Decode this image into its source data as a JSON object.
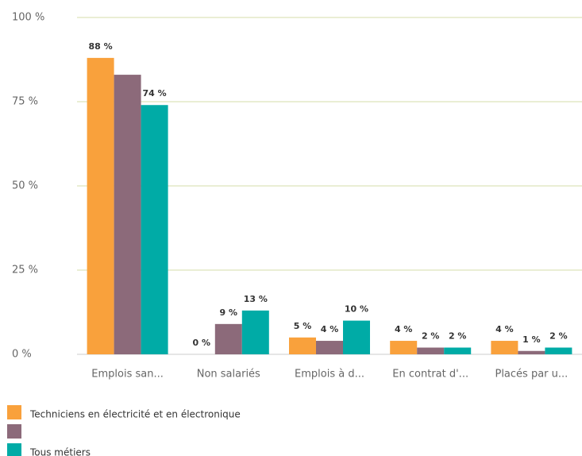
{
  "chart_data": {
    "type": "bar",
    "categories": [
      "Emplois san...",
      "Non salariés",
      "Emplois à d...",
      "En contrat d'...",
      "Placés par u..."
    ],
    "series": [
      {
        "name": "Techniciens en électricité et en électronique",
        "color": "#f9a13c",
        "values": [
          88,
          0,
          5,
          4,
          4
        ],
        "value_labels": [
          "88 %",
          "0 %",
          "5 %",
          "4 %",
          "4 %"
        ]
      },
      {
        "name": null,
        "color": "#8c6a7a",
        "values": [
          83,
          9,
          4,
          2,
          1
        ],
        "value_labels": [
          null,
          "9 %",
          "4 %",
          "2 %",
          "1 %"
        ]
      },
      {
        "name": "Tous métiers",
        "color": "#00aba6",
        "values": [
          74,
          13,
          10,
          2,
          2
        ],
        "value_labels": [
          "74 %",
          "13 %",
          "10 %",
          "2 %",
          "2 %"
        ]
      }
    ],
    "ylim": [
      0,
      100
    ],
    "yticks": [
      {
        "value": 0,
        "label": "0 %"
      },
      {
        "value": 25,
        "label": "25 %"
      },
      {
        "value": 50,
        "label": "50 %"
      },
      {
        "value": 75,
        "label": "75 %"
      },
      {
        "value": 100,
        "label": "100 %"
      }
    ],
    "grid": true
  }
}
